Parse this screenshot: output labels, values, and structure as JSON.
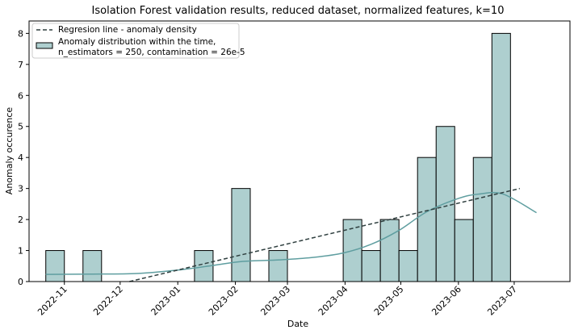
{
  "chart_data": {
    "type": "bar",
    "title": "Isolation Forest validation results, reduced dataset, normalized features, k=10",
    "xlabel": "Date",
    "ylabel": "Anomaly occurence",
    "ylim": [
      0,
      8.4
    ],
    "yticks": [
      0,
      1,
      2,
      3,
      4,
      5,
      6,
      7,
      8
    ],
    "x_range": [
      "2022-10-13",
      "2023-07-31"
    ],
    "xticks": [
      "2022-11",
      "2022-12",
      "2023-01",
      "2023-02",
      "2023-03",
      "2023-04",
      "2023-05",
      "2023-06",
      "2023-07"
    ],
    "bin_edges": [
      "2022-10-22",
      "2022-11-01",
      "2022-11-11",
      "2022-11-21",
      "2022-12-01",
      "2022-12-11",
      "2022-12-21",
      "2022-12-31",
      "2023-01-10",
      "2023-01-20",
      "2023-01-30",
      "2023-02-09",
      "2023-02-19",
      "2023-03-01",
      "2023-03-11",
      "2023-03-21",
      "2023-03-31",
      "2023-04-10",
      "2023-04-20",
      "2023-04-30",
      "2023-05-10",
      "2023-05-20",
      "2023-05-30",
      "2023-06-09",
      "2023-06-19",
      "2023-06-29",
      "2023-07-09"
    ],
    "values": [
      1,
      0,
      1,
      0,
      0,
      0,
      0,
      0,
      1,
      0,
      3,
      0,
      1,
      0,
      0,
      0,
      2,
      1,
      2,
      1,
      4,
      5,
      2,
      4,
      8
    ],
    "regression_line": {
      "name": "Regresion line - anomaly density",
      "x": [
        "2022-12-06",
        "2023-07-04"
      ],
      "y": [
        0,
        3.0
      ]
    },
    "kde_curve": {
      "x": [
        "2022-10-22",
        "2022-11-15",
        "2022-12-10",
        "2023-01-01",
        "2023-01-20",
        "2023-02-05",
        "2023-02-25",
        "2023-03-15",
        "2023-03-31",
        "2023-04-15",
        "2023-04-30",
        "2023-05-15",
        "2023-06-01",
        "2023-06-12",
        "2023-06-25",
        "2023-07-13"
      ],
      "y": [
        0.23,
        0.24,
        0.26,
        0.37,
        0.52,
        0.65,
        0.7,
        0.78,
        0.92,
        1.2,
        1.65,
        2.25,
        2.68,
        2.82,
        2.82,
        2.22
      ]
    },
    "legend": {
      "placement": "top-left",
      "entries": [
        {
          "label": "Regresion line - anomaly density",
          "kind": "line"
        },
        {
          "label": "Anomaly distribution within the time,",
          "label2": "n_estimators = 250, contamination = 26e-5",
          "kind": "patch"
        }
      ]
    },
    "colors": {
      "bar_fill": "#aecfcf",
      "bar_edge": "#000000",
      "kde": "#5f9ea0",
      "regression": "#2f3f3f"
    }
  }
}
